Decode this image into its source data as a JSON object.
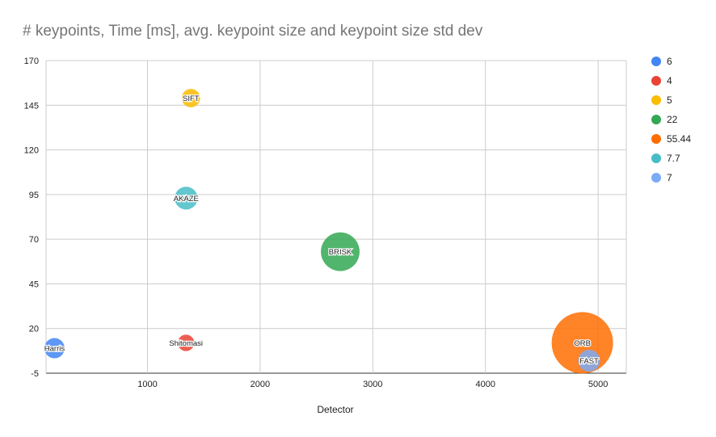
{
  "chart_data": {
    "type": "bubble",
    "title": "# keypoints, Time [ms], avg. keypoint size and keypoint size std dev",
    "xlabel": "Detector",
    "ylabel": "",
    "xlim": [
      100,
      5250
    ],
    "ylim": [
      -5,
      170
    ],
    "xticks": [
      "1000",
      "2000",
      "3000",
      "4000",
      "5000"
    ],
    "yticks": [
      "-5",
      "20",
      "45",
      "70",
      "95",
      "120",
      "145",
      "170"
    ],
    "grid": true,
    "legend_position": "right",
    "points": [
      {
        "label": "Harris",
        "x": 175,
        "y": 9,
        "size": 6,
        "color": "#4285f4"
      },
      {
        "label": "Shitomasi",
        "x": 1342,
        "y": 12,
        "size": 4,
        "color": "#ea4335"
      },
      {
        "label": "SIFT",
        "x": 1386,
        "y": 149,
        "size": 5,
        "color": "#fbbc04"
      },
      {
        "label": "BRISK",
        "x": 2711,
        "y": 63,
        "size": 22,
        "color": "#34a853"
      },
      {
        "label": "ORB",
        "x": 4860,
        "y": 12,
        "size": 55.44,
        "color": "#ff6d01"
      },
      {
        "label": "AKAZE",
        "x": 1343,
        "y": 93,
        "size": 7.7,
        "color": "#46bdc6"
      },
      {
        "label": "FAST",
        "x": 4920,
        "y": 2,
        "size": 7,
        "color": "#7baaf7"
      }
    ],
    "legend": [
      "6",
      "4",
      "5",
      "22",
      "55.44",
      "7.7",
      "7"
    ]
  }
}
